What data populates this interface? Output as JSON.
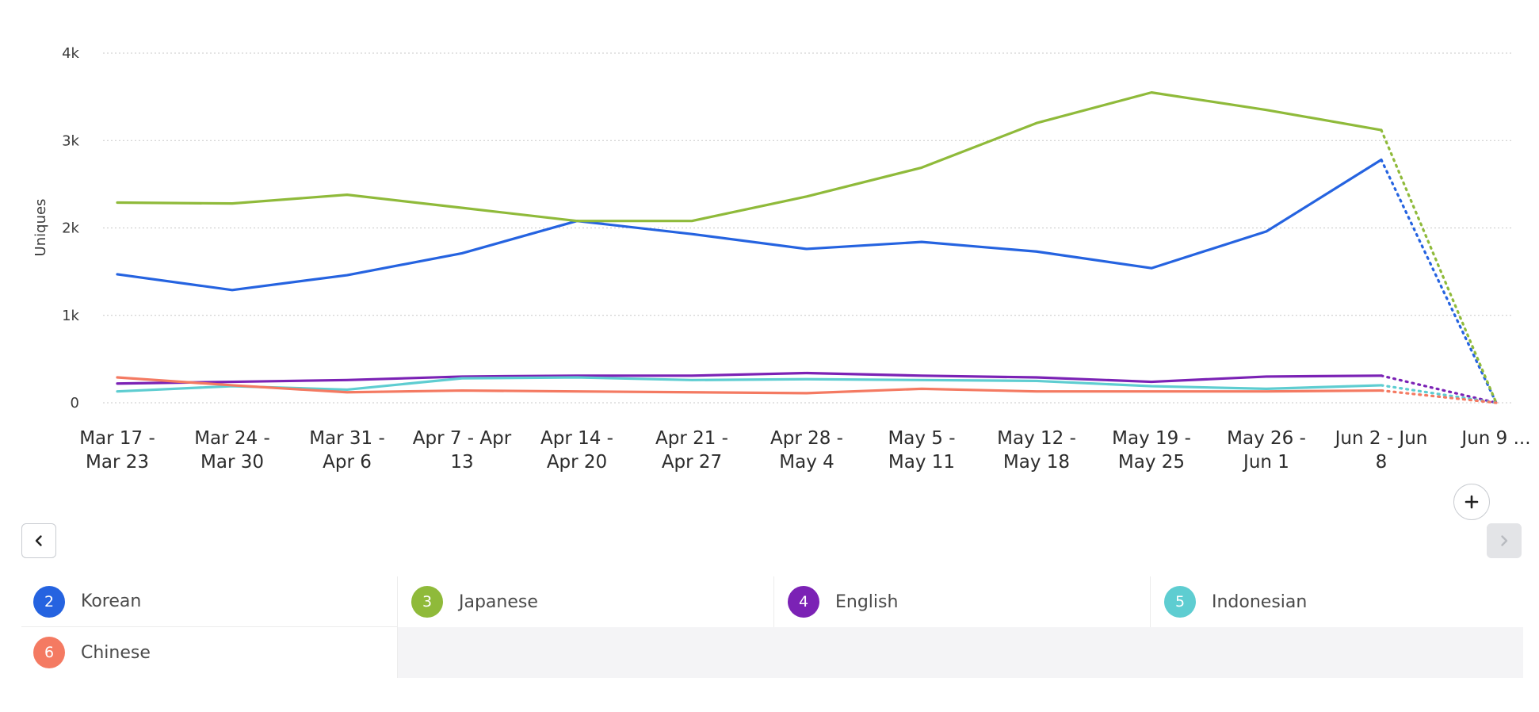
{
  "chart_data": {
    "type": "line",
    "ylabel": "Uniques",
    "xlabel": "",
    "ylim": [
      0,
      4000
    ],
    "y_ticks": [
      "0",
      "1k",
      "2k",
      "3k",
      "4k"
    ],
    "y_tick_values": [
      0,
      1000,
      2000,
      3000,
      4000
    ],
    "grid": "horizontal dotted",
    "categories": [
      [
        "Mar 17 -",
        "Mar 23"
      ],
      [
        "Mar 24 -",
        "Mar 30"
      ],
      [
        "Mar 31 -",
        "Apr 6"
      ],
      [
        "Apr 7 - Apr",
        "13"
      ],
      [
        "Apr 14 -",
        "Apr 20"
      ],
      [
        "Apr 21 -",
        "Apr 27"
      ],
      [
        "Apr 28 -",
        "May 4"
      ],
      [
        "May 5 -",
        "May 11"
      ],
      [
        "May 12 -",
        "May 18"
      ],
      [
        "May 19 -",
        "May 25"
      ],
      [
        "May 26 -",
        "Jun 1"
      ],
      [
        "Jun 2 - Jun",
        "8"
      ],
      [
        "Jun 9 ..."
      ]
    ],
    "note_last_point": "last segment (Jun 2 - Jun 8 to Jun 9 ...) drawn dotted (incomplete period)",
    "series": [
      {
        "id": 2,
        "name": "Korean",
        "color": "#2563e0",
        "values": [
          1470,
          1290,
          1460,
          1710,
          2080,
          1930,
          1760,
          1840,
          1730,
          1540,
          1960,
          2780,
          0
        ]
      },
      {
        "id": 3,
        "name": "Japanese",
        "color": "#8fba3a",
        "values": [
          2290,
          2280,
          2380,
          2230,
          2080,
          2080,
          2360,
          2690,
          3200,
          3550,
          3350,
          3120,
          0
        ]
      },
      {
        "id": 4,
        "name": "English",
        "color": "#7b22b5",
        "values": [
          220,
          240,
          260,
          300,
          310,
          310,
          340,
          310,
          290,
          240,
          300,
          310,
          0
        ]
      },
      {
        "id": 5,
        "name": "Indonesian",
        "color": "#5ecdd1",
        "values": [
          130,
          190,
          150,
          280,
          290,
          260,
          270,
          260,
          250,
          190,
          160,
          200,
          0
        ]
      },
      {
        "id": 6,
        "name": "Chinese",
        "color": "#f47a62",
        "values": [
          290,
          200,
          120,
          140,
          130,
          120,
          110,
          160,
          130,
          130,
          130,
          140,
          0
        ]
      }
    ]
  },
  "controls": {
    "add_icon": "plus-icon",
    "prev_icon": "chevron-left-icon",
    "next_icon": "chevron-right-icon"
  },
  "legend": {
    "items": [
      {
        "number": "2",
        "label": "Korean",
        "color": "#2563e0"
      },
      {
        "number": "3",
        "label": "Japanese",
        "color": "#8fba3a"
      },
      {
        "number": "4",
        "label": "English",
        "color": "#7b22b5"
      },
      {
        "number": "5",
        "label": "Indonesian",
        "color": "#5ecdd1"
      },
      {
        "number": "6",
        "label": "Chinese",
        "color": "#f47a62"
      }
    ]
  }
}
